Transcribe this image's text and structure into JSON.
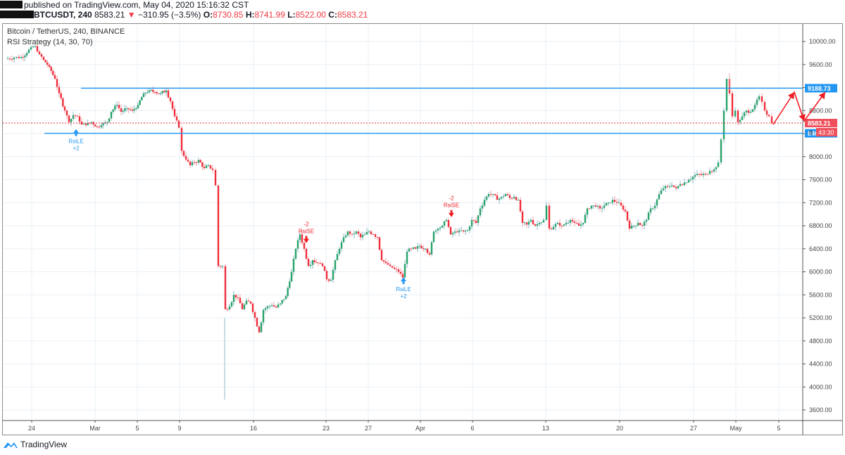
{
  "header": {
    "published_line": "published on TradingView.com, May 04, 2020 15:16:32 CST",
    "symbol": "BTCUSDT, 240",
    "last": "8583.21",
    "change_arrow": "▼",
    "change": "−310.95 (−3.5%)",
    "o_label": "O:",
    "o": "8730.85",
    "h_label": "H:",
    "h": "8741.99",
    "l_label": "L:",
    "l": "8522.00",
    "c_label": "C:",
    "c": "8583.21"
  },
  "legend": {
    "title": "Bitcoin / TetherUS, 240, BINANCE",
    "indicator": "RSI Strategy (14, 30, 70)"
  },
  "footer": {
    "brand": "TradingView"
  },
  "colors": {
    "up": "#26a269",
    "down": "#ef2d3a",
    "line": "#2196f3",
    "grid": "#e9f0f7",
    "price_label": "#ef4f5a",
    "level_label": "#2196f3"
  },
  "chart_data": {
    "type": "candlestick",
    "title": "Bitcoin / TetherUS, 240, BINANCE",
    "subtitle": "RSI Strategy (14, 30, 70)",
    "xlabel": "",
    "ylabel": "",
    "ylim": [
      3450,
      10200
    ],
    "grid": true,
    "y_ticks": [
      "10000.00",
      "9600.00",
      "9200.00",
      "8800.00",
      "8400.00",
      "8000.00",
      "7600.00",
      "7200.00",
      "6800.00",
      "6400.00",
      "6000.00",
      "5600.00",
      "5200.00",
      "4800.00",
      "4400.00",
      "4000.00",
      "3600.00"
    ],
    "x_ticks": [
      {
        "label": "24",
        "x": 45
      },
      {
        "label": "Mar",
        "x": 135
      },
      {
        "label": "5",
        "x": 195
      },
      {
        "label": "9",
        "x": 255
      },
      {
        "label": "16",
        "x": 360
      },
      {
        "label": "23",
        "x": 463
      },
      {
        "label": "27",
        "x": 523
      },
      {
        "label": "Apr",
        "x": 597
      },
      {
        "label": "6",
        "x": 671
      },
      {
        "label": "13",
        "x": 775
      },
      {
        "label": "20",
        "x": 880
      },
      {
        "label": "27",
        "x": 985
      },
      {
        "label": "May",
        "x": 1045
      },
      {
        "label": "5",
        "x": 1106
      }
    ],
    "horizontal_lines": [
      {
        "price": 9188.73,
        "label": "9188.73",
        "x_start": 115
      },
      {
        "price": 8405.64,
        "label": "8405.64",
        "x_start": 63
      }
    ],
    "last_price": {
      "value": 8583.21,
      "label": "8583.21",
      "countdown": "43:30"
    },
    "signals": [
      {
        "type": "long",
        "label": "RsiLE",
        "qty": "+2",
        "x": 108,
        "price": 8480
      },
      {
        "type": "short",
        "label": "RsiSE",
        "qty": "-2",
        "x": 435,
        "price": 6500
      },
      {
        "type": "long",
        "label": "RsiLE",
        "qty": "+2",
        "x": 573,
        "price": 5910
      },
      {
        "type": "short",
        "label": "RsiSE",
        "qty": "-2",
        "x": 641,
        "price": 6950
      }
    ],
    "annotations": [
      {
        "type": "arrow-path",
        "points": [
          [
            1098,
            177
          ],
          [
            1128,
            131
          ],
          [
            1142,
            172
          ],
          [
            1172,
            131
          ]
        ],
        "color": "#ef1c24"
      }
    ],
    "path_close": [
      [
        8,
        9700
      ],
      [
        20,
        9720
      ],
      [
        30,
        9730
      ],
      [
        38,
        9800
      ],
      [
        44,
        9900
      ],
      [
        50,
        9920
      ],
      [
        56,
        9780
      ],
      [
        62,
        9680
      ],
      [
        70,
        9560
      ],
      [
        78,
        9350
      ],
      [
        84,
        9100
      ],
      [
        92,
        8800
      ],
      [
        98,
        8600
      ],
      [
        104,
        8720
      ],
      [
        110,
        8700
      ],
      [
        116,
        8560
      ],
      [
        122,
        8550
      ],
      [
        130,
        8600
      ],
      [
        138,
        8520
      ],
      [
        144,
        8550
      ],
      [
        152,
        8600
      ],
      [
        158,
        8780
      ],
      [
        166,
        8900
      ],
      [
        172,
        8780
      ],
      [
        180,
        8840
      ],
      [
        188,
        8800
      ],
      [
        196,
        8900
      ],
      [
        204,
        9100
      ],
      [
        212,
        9150
      ],
      [
        220,
        9120
      ],
      [
        228,
        9100
      ],
      [
        236,
        9150
      ],
      [
        242,
        8960
      ],
      [
        248,
        8700
      ],
      [
        254,
        8500
      ],
      [
        258,
        8100
      ],
      [
        264,
        7950
      ],
      [
        270,
        7850
      ],
      [
        276,
        7900
      ],
      [
        282,
        7940
      ],
      [
        290,
        7800
      ],
      [
        296,
        7850
      ],
      [
        302,
        7770
      ],
      [
        306,
        7500
      ],
      [
        310,
        6100
      ],
      [
        316,
        6100
      ],
      [
        320,
        5350
      ],
      [
        326,
        5400
      ],
      [
        332,
        5600
      ],
      [
        338,
        5550
      ],
      [
        344,
        5350
      ],
      [
        350,
        5500
      ],
      [
        356,
        5450
      ],
      [
        362,
        5200
      ],
      [
        368,
        4950
      ],
      [
        374,
        5340
      ],
      [
        380,
        5400
      ],
      [
        386,
        5420
      ],
      [
        392,
        5380
      ],
      [
        398,
        5450
      ],
      [
        406,
        5580
      ],
      [
        414,
        6000
      ],
      [
        420,
        6400
      ],
      [
        426,
        6650
      ],
      [
        432,
        6400
      ],
      [
        438,
        6100
      ],
      [
        444,
        6200
      ],
      [
        452,
        6150
      ],
      [
        458,
        6100
      ],
      [
        464,
        5870
      ],
      [
        470,
        5860
      ],
      [
        476,
        6200
      ],
      [
        482,
        6400
      ],
      [
        488,
        6600
      ],
      [
        494,
        6700
      ],
      [
        500,
        6650
      ],
      [
        506,
        6700
      ],
      [
        512,
        6600
      ],
      [
        518,
        6650
      ],
      [
        524,
        6700
      ],
      [
        530,
        6650
      ],
      [
        536,
        6600
      ],
      [
        542,
        6200
      ],
      [
        548,
        6150
      ],
      [
        554,
        6100
      ],
      [
        560,
        6050
      ],
      [
        566,
        6000
      ],
      [
        572,
        5900
      ],
      [
        578,
        6350
      ],
      [
        584,
        6400
      ],
      [
        590,
        6400
      ],
      [
        596,
        6450
      ],
      [
        604,
        6400
      ],
      [
        610,
        6300
      ],
      [
        616,
        6700
      ],
      [
        622,
        6750
      ],
      [
        628,
        6800
      ],
      [
        634,
        6900
      ],
      [
        640,
        6650
      ],
      [
        646,
        6700
      ],
      [
        652,
        6720
      ],
      [
        658,
        6700
      ],
      [
        664,
        6720
      ],
      [
        670,
        6900
      ],
      [
        676,
        6850
      ],
      [
        682,
        7100
      ],
      [
        688,
        7250
      ],
      [
        694,
        7350
      ],
      [
        700,
        7350
      ],
      [
        706,
        7250
      ],
      [
        712,
        7300
      ],
      [
        718,
        7350
      ],
      [
        724,
        7280
      ],
      [
        730,
        7300
      ],
      [
        736,
        7250
      ],
      [
        742,
        6850
      ],
      [
        748,
        6820
      ],
      [
        754,
        6900
      ],
      [
        760,
        6800
      ],
      [
        766,
        6850
      ],
      [
        772,
        6900
      ],
      [
        776,
        7150
      ],
      [
        780,
        6750
      ],
      [
        786,
        6780
      ],
      [
        792,
        6850
      ],
      [
        798,
        6800
      ],
      [
        804,
        6850
      ],
      [
        810,
        6900
      ],
      [
        816,
        6850
      ],
      [
        822,
        6800
      ],
      [
        828,
        6850
      ],
      [
        834,
        7100
      ],
      [
        840,
        7150
      ],
      [
        846,
        7130
      ],
      [
        852,
        7100
      ],
      [
        858,
        7150
      ],
      [
        864,
        7200
      ],
      [
        870,
        7250
      ],
      [
        876,
        7200
      ],
      [
        882,
        7150
      ],
      [
        888,
        7050
      ],
      [
        894,
        6750
      ],
      [
        900,
        6800
      ],
      [
        906,
        6850
      ],
      [
        912,
        6800
      ],
      [
        918,
        6900
      ],
      [
        924,
        7100
      ],
      [
        930,
        7150
      ],
      [
        936,
        7350
      ],
      [
        942,
        7450
      ],
      [
        948,
        7480
      ],
      [
        954,
        7500
      ],
      [
        960,
        7450
      ],
      [
        966,
        7520
      ],
      [
        972,
        7550
      ],
      [
        978,
        7600
      ],
      [
        984,
        7650
      ],
      [
        990,
        7700
      ],
      [
        996,
        7680
      ],
      [
        1002,
        7700
      ],
      [
        1008,
        7750
      ],
      [
        1014,
        7780
      ],
      [
        1020,
        7900
      ],
      [
        1024,
        8300
      ],
      [
        1028,
        8800
      ],
      [
        1032,
        9350
      ],
      [
        1036,
        9100
      ],
      [
        1040,
        8700
      ],
      [
        1044,
        8800
      ],
      [
        1048,
        8600
      ],
      [
        1054,
        8700
      ],
      [
        1060,
        8800
      ],
      [
        1066,
        8780
      ],
      [
        1072,
        8900
      ],
      [
        1078,
        9050
      ],
      [
        1082,
        8950
      ],
      [
        1086,
        8800
      ],
      [
        1092,
        8700
      ],
      [
        1096,
        8583
      ]
    ]
  }
}
